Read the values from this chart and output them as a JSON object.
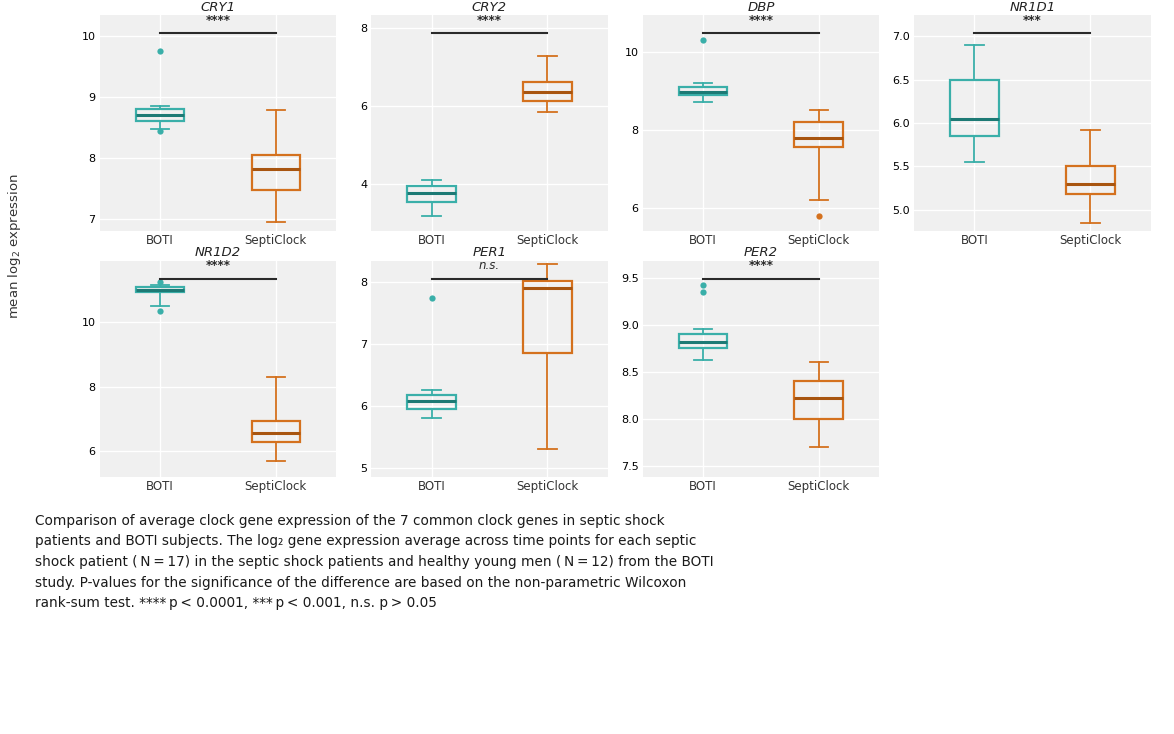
{
  "genes": [
    "CRY1",
    "CRY2",
    "DBP",
    "NR1D1",
    "NR1D2",
    "PER1",
    "PER2"
  ],
  "significance": [
    "****",
    "****",
    "****",
    "***",
    "****",
    "n.s.",
    "****"
  ],
  "boti_color": "#3aafa9",
  "septi_color": "#d4711e",
  "boti_med_color": "#1d7a75",
  "septi_med_color": "#a85510",
  "background": "#f0f0f0",
  "grid_color": "#ffffff",
  "CRY1": {
    "BOTI": {
      "q1": 8.6,
      "median": 8.7,
      "q3": 8.8,
      "whisker_low": 8.48,
      "whisker_high": 8.85,
      "outliers": [
        9.75,
        8.45
      ]
    },
    "SeptiClock": {
      "q1": 7.48,
      "median": 7.82,
      "q3": 8.05,
      "whisker_low": 6.95,
      "whisker_high": 8.78,
      "outliers": []
    },
    "ylim": [
      6.8,
      10.35
    ],
    "yticks": [
      7,
      8,
      9,
      10
    ]
  },
  "CRY2": {
    "BOTI": {
      "q1": 3.55,
      "median": 3.78,
      "q3": 3.95,
      "whisker_low": 3.2,
      "whisker_high": 4.1,
      "outliers": []
    },
    "SeptiClock": {
      "q1": 6.15,
      "median": 6.38,
      "q3": 6.62,
      "whisker_low": 5.85,
      "whisker_high": 7.3,
      "outliers": []
    },
    "ylim": [
      2.8,
      8.35
    ],
    "yticks": [
      4,
      6,
      8
    ]
  },
  "DBP": {
    "BOTI": {
      "q1": 8.88,
      "median": 8.98,
      "q3": 9.1,
      "whisker_low": 8.72,
      "whisker_high": 9.2,
      "outliers": [
        10.3
      ]
    },
    "SeptiClock": {
      "q1": 7.55,
      "median": 7.8,
      "q3": 8.2,
      "whisker_low": 6.2,
      "whisker_high": 8.5,
      "outliers": [
        5.8
      ]
    },
    "ylim": [
      5.4,
      10.95
    ],
    "yticks": [
      6,
      8,
      10
    ]
  },
  "NR1D1": {
    "BOTI": {
      "q1": 5.85,
      "median": 6.05,
      "q3": 6.5,
      "whisker_low": 5.55,
      "whisker_high": 6.9,
      "outliers": []
    },
    "SeptiClock": {
      "q1": 5.18,
      "median": 5.3,
      "q3": 5.5,
      "whisker_low": 4.85,
      "whisker_high": 5.92,
      "outliers": []
    },
    "ylim": [
      4.75,
      7.25
    ],
    "yticks": [
      5.0,
      5.5,
      6.0,
      6.5,
      7.0
    ]
  },
  "NR1D2": {
    "BOTI": {
      "q1": 10.92,
      "median": 11.0,
      "q3": 11.08,
      "whisker_low": 10.5,
      "whisker_high": 11.15,
      "outliers": [
        10.35,
        11.25
      ]
    },
    "SeptiClock": {
      "q1": 6.3,
      "median": 6.55,
      "q3": 6.95,
      "whisker_low": 5.7,
      "whisker_high": 8.3,
      "outliers": []
    },
    "ylim": [
      5.2,
      11.9
    ],
    "yticks": [
      6,
      8,
      10
    ]
  },
  "PER1": {
    "BOTI": {
      "q1": 5.95,
      "median": 6.08,
      "q3": 6.18,
      "whisker_low": 5.8,
      "whisker_high": 6.25,
      "outliers": [
        7.75
      ]
    },
    "SeptiClock": {
      "q1": 6.85,
      "median": 7.9,
      "q3": 8.02,
      "whisker_low": 5.3,
      "whisker_high": 8.3,
      "outliers": []
    },
    "ylim": [
      4.85,
      8.35
    ],
    "yticks": [
      5,
      6,
      7,
      8
    ]
  },
  "PER2": {
    "BOTI": {
      "q1": 8.75,
      "median": 8.82,
      "q3": 8.9,
      "whisker_low": 8.62,
      "whisker_high": 8.95,
      "outliers": [
        9.35,
        9.42
      ]
    },
    "SeptiClock": {
      "q1": 8.0,
      "median": 8.22,
      "q3": 8.4,
      "whisker_low": 7.7,
      "whisker_high": 8.6,
      "outliers": []
    },
    "ylim": [
      7.38,
      9.68
    ],
    "yticks": [
      7.5,
      8.0,
      8.5,
      9.0,
      9.5
    ]
  }
}
